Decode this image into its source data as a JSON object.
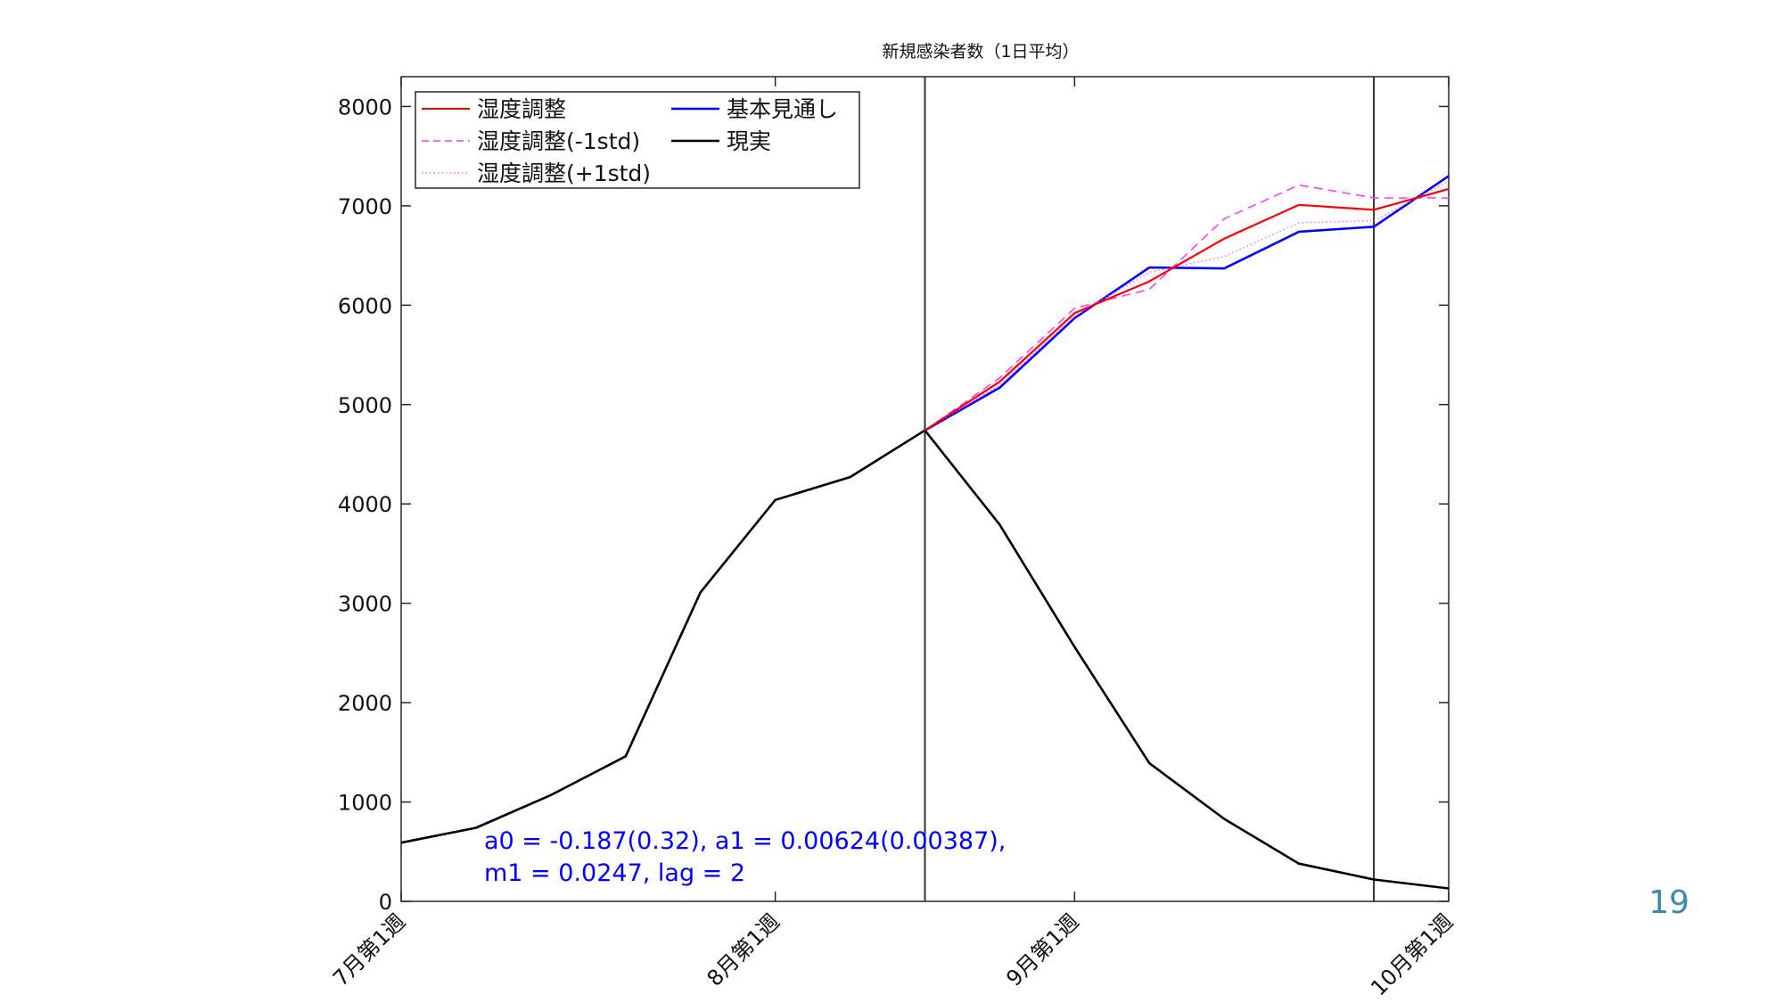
{
  "chart_data": {
    "type": "line",
    "title": "新規感染者数（1日平均）",
    "xlabel": "",
    "ylabel": "",
    "ylim": [
      0,
      8300
    ],
    "yticks": [
      0,
      1000,
      2000,
      3000,
      4000,
      5000,
      6000,
      7000,
      8000
    ],
    "xlim": [
      0,
      14
    ],
    "xticks": [
      {
        "pos": 0,
        "label": "7月第1週"
      },
      {
        "pos": 5,
        "label": "8月第1週"
      },
      {
        "pos": 9,
        "label": "9月第1週"
      },
      {
        "pos": 14,
        "label": "10月第1週"
      }
    ],
    "vertical_lines": [
      7,
      13
    ],
    "grid": false,
    "legend_placement": "top-left",
    "series": [
      {
        "name": "湿度調整",
        "color": "#ff0000",
        "style": "solid",
        "x": [
          7,
          8,
          9,
          10,
          11,
          12,
          13,
          14
        ],
        "y": [
          4740,
          5230,
          5920,
          6240,
          6670,
          7010,
          6960,
          7170
        ]
      },
      {
        "name": "湿度調整(-1std)",
        "color": "#ff33ff",
        "style": "dashed",
        "x": [
          7,
          8,
          9,
          10,
          11,
          12,
          13,
          14
        ],
        "y": [
          4740,
          5270,
          5970,
          6160,
          6870,
          7210,
          7080,
          7080
        ]
      },
      {
        "name": "湿度調整(+1std)",
        "color": "#ff66ff",
        "style": "dotted",
        "x": [
          7,
          8,
          9,
          10,
          11,
          12,
          13,
          14
        ],
        "y": [
          4740,
          5200,
          5890,
          6330,
          6490,
          6830,
          6850,
          7250
        ]
      },
      {
        "name": "基本見通し",
        "color": "#0000ff",
        "style": "solid",
        "x": [
          7,
          8,
          9,
          10,
          11,
          12,
          13,
          14
        ],
        "y": [
          4740,
          5170,
          5870,
          6380,
          6370,
          6740,
          6790,
          7300
        ]
      },
      {
        "name": "現実",
        "color": "#000000",
        "style": "solid",
        "x": [
          0,
          1,
          2,
          3,
          4,
          5,
          6,
          7,
          8,
          9,
          10,
          11,
          12,
          13,
          14
        ],
        "y": [
          590,
          740,
          1070,
          1460,
          3110,
          4040,
          4270,
          4740,
          3790,
          2560,
          1390,
          830,
          380,
          220,
          130
        ]
      }
    ],
    "annotation": {
      "line1": "a0 = -0.187(0.32), a1 = 0.00624(0.00387),",
      "line2": "m1 = 0.0247, lag = 2"
    }
  },
  "page_number": "19"
}
